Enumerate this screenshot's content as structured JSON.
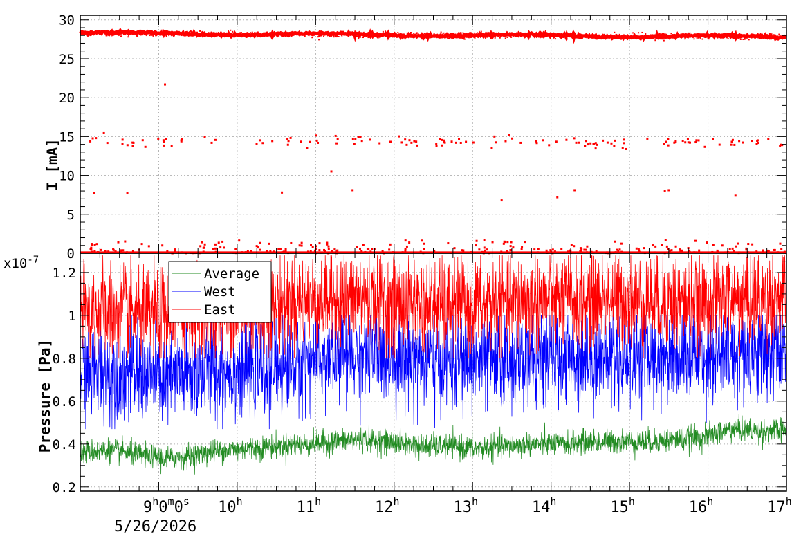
{
  "chart_data": [
    {
      "type": "scatter",
      "ylabel": "I [mA]",
      "ylim": [
        0,
        30
      ],
      "yticks": [
        "0",
        "5",
        "10",
        "15",
        "20",
        "25",
        "30"
      ],
      "grid": true,
      "x_range": [
        "2026-05-26 08:00",
        "2026-05-26 17:00"
      ],
      "series": [
        {
          "color": "#ff0000",
          "description_points": {
            "main_band": {
              "start": 28.3,
              "end": 27.8
            },
            "outliers_high": [
              [
                8.93,
                21.7
              ]
            ],
            "cluster_near_14": 14.3,
            "cluster_near_8": 7.9,
            "cluster_near_0": 0.3
          }
        }
      ]
    },
    {
      "type": "line",
      "ylabel": "Pressure [Pa]",
      "yscale_label": "x10",
      "yscale_exponent": "-7",
      "ylim": [
        0.18,
        1.3
      ],
      "yticks": [
        "0.2",
        "0.4",
        "0.6",
        "0.8",
        "1",
        "1.2"
      ],
      "grid": true,
      "legend_position": "top-left",
      "series": [
        {
          "name": "Average",
          "color": "#228b22",
          "baseline": [
            0.36,
            0.37,
            0.35,
            0.33,
            0.35,
            0.37,
            0.38,
            0.39,
            0.4,
            0.41,
            0.42,
            0.41,
            0.39,
            0.39,
            0.38,
            0.39,
            0.4,
            0.4,
            0.41,
            0.41,
            0.41,
            0.42,
            0.43,
            0.47,
            0.46,
            0.46
          ]
        },
        {
          "name": "West",
          "color": "#0000ff",
          "baseline": [
            0.74,
            0.74,
            0.72,
            0.7,
            0.73,
            0.74,
            0.75,
            0.76,
            0.78,
            0.8,
            0.82,
            0.81,
            0.79,
            0.78,
            0.78,
            0.79,
            0.8,
            0.8,
            0.8,
            0.81,
            0.81,
            0.82,
            0.82,
            0.82,
            0.83,
            0.83
          ]
        },
        {
          "name": "East",
          "color": "#ff0000",
          "baseline": [
            1.02,
            1.02,
            1.01,
            1.0,
            1.01,
            1.02,
            1.03,
            1.05,
            1.07,
            1.08,
            1.08,
            1.06,
            1.05,
            1.04,
            1.05,
            1.06,
            1.07,
            1.07,
            1.07,
            1.08,
            1.07,
            1.06,
            1.07,
            1.07,
            1.08,
            1.08
          ]
        }
      ]
    }
  ],
  "time_axis": {
    "first_label_main": "9",
    "first_label_sup_h": "h",
    "first_label_mid": "0",
    "first_label_sup_m": "m",
    "first_label_end": "0",
    "first_label_sup_s": "s",
    "date": "5/26/2026",
    "hours": [
      "10",
      "11",
      "12",
      "13",
      "14",
      "15",
      "16",
      "17"
    ],
    "hour_sup": "h"
  }
}
